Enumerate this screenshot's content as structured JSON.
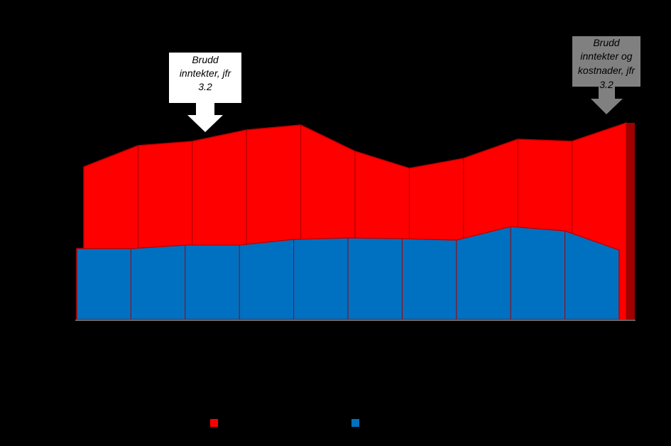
{
  "chart_data": {
    "type": "area",
    "categories": [
      null,
      null,
      null,
      null,
      null,
      null,
      null,
      null,
      null,
      null,
      null
    ],
    "series": [
      {
        "color": "#ff0000",
        "values": [
          215,
          245,
          251,
          267,
          274,
          237,
          213,
          227,
          254,
          251,
          277
        ]
      },
      {
        "color": "#0070c0",
        "values": [
          100,
          100,
          105,
          105,
          113,
          115,
          114,
          112,
          131,
          125,
          98
        ]
      }
    ],
    "ylim": [
      0,
      300
    ],
    "annotations": [
      {
        "lines": [
          "Brudd",
          "inntekter, jfr",
          "3.2"
        ]
      },
      {
        "lines": [
          "Brudd",
          "inntekter og",
          "kostnader, jfr",
          "3.2"
        ]
      }
    ]
  }
}
